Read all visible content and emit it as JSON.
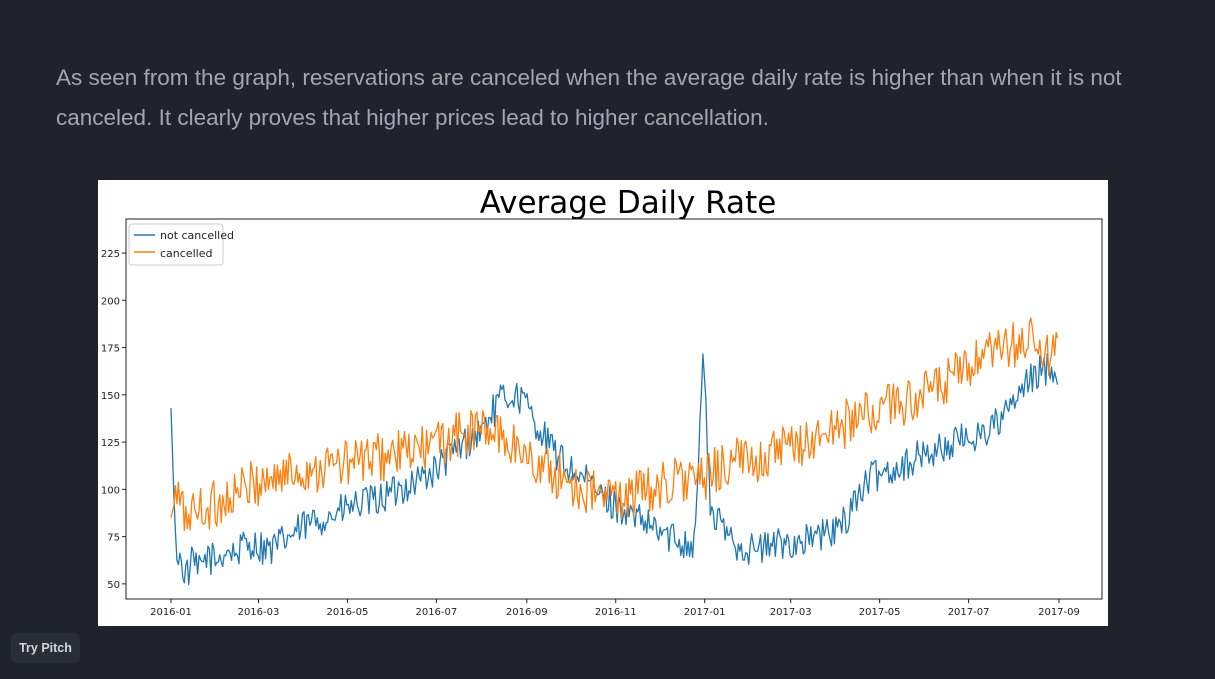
{
  "slide": {
    "paragraph": "As seen from the graph, reservations are canceled when the average daily rate is higher than when it is not canceled. It clearly proves that higher prices lead to higher cancellation."
  },
  "badge": {
    "label": "Try Pitch"
  },
  "chart_data": {
    "type": "line",
    "title": "Average Daily Rate",
    "xlabel": "",
    "ylabel": "",
    "x_range": [
      "2016-01-01",
      "2017-09-01"
    ],
    "ylim": [
      42,
      243
    ],
    "yticks": [
      50,
      75,
      100,
      125,
      150,
      175,
      200,
      225
    ],
    "xticks": [
      "2016-01",
      "2016-03",
      "2016-05",
      "2016-07",
      "2016-09",
      "2016-11",
      "2017-01",
      "2017-03",
      "2017-05",
      "2017-07",
      "2017-09"
    ],
    "grid": false,
    "legend": "top-left",
    "series": [
      {
        "name": "not cancelled",
        "color": "#1f77b4",
        "points": [
          [
            "2016-01-01",
            143
          ],
          [
            "2016-01-04",
            72
          ],
          [
            "2016-01-08",
            60
          ],
          [
            "2016-01-12",
            55
          ],
          [
            "2016-01-16",
            62
          ],
          [
            "2016-01-20",
            56
          ],
          [
            "2016-01-25",
            65
          ],
          [
            "2016-02-01",
            62
          ],
          [
            "2016-02-08",
            68
          ],
          [
            "2016-02-15",
            66
          ],
          [
            "2016-02-22",
            72
          ],
          [
            "2016-03-01",
            70
          ],
          [
            "2016-03-10",
            68
          ],
          [
            "2016-03-20",
            74
          ],
          [
            "2016-04-01",
            80
          ],
          [
            "2016-04-10",
            84
          ],
          [
            "2016-04-20",
            86
          ],
          [
            "2016-05-01",
            90
          ],
          [
            "2016-05-10",
            92
          ],
          [
            "2016-05-20",
            94
          ],
          [
            "2016-06-01",
            98
          ],
          [
            "2016-06-10",
            102
          ],
          [
            "2016-06-20",
            106
          ],
          [
            "2016-07-01",
            110
          ],
          [
            "2016-07-10",
            118
          ],
          [
            "2016-07-20",
            124
          ],
          [
            "2016-07-31",
            130
          ],
          [
            "2016-08-08",
            140
          ],
          [
            "2016-08-15",
            148
          ],
          [
            "2016-08-22",
            150
          ],
          [
            "2016-08-29",
            148
          ],
          [
            "2016-09-05",
            138
          ],
          [
            "2016-09-15",
            125
          ],
          [
            "2016-09-25",
            115
          ],
          [
            "2016-10-05",
            108
          ],
          [
            "2016-10-15",
            102
          ],
          [
            "2016-10-25",
            95
          ],
          [
            "2016-11-05",
            90
          ],
          [
            "2016-11-15",
            84
          ],
          [
            "2016-11-25",
            80
          ],
          [
            "2016-12-05",
            76
          ],
          [
            "2016-12-15",
            73
          ],
          [
            "2016-12-25",
            71
          ],
          [
            "2016-12-31",
            173
          ],
          [
            "2017-01-05",
            88
          ],
          [
            "2017-01-15",
            78
          ],
          [
            "2017-01-25",
            70
          ],
          [
            "2017-02-05",
            68
          ],
          [
            "2017-02-15",
            70
          ],
          [
            "2017-02-25",
            72
          ],
          [
            "2017-03-05",
            72
          ],
          [
            "2017-03-15",
            74
          ],
          [
            "2017-03-25",
            76
          ],
          [
            "2017-04-05",
            80
          ],
          [
            "2017-04-15",
            96
          ],
          [
            "2017-04-25",
            106
          ],
          [
            "2017-05-05",
            110
          ],
          [
            "2017-05-15",
            112
          ],
          [
            "2017-05-25",
            116
          ],
          [
            "2017-06-05",
            120
          ],
          [
            "2017-06-15",
            122
          ],
          [
            "2017-06-25",
            126
          ],
          [
            "2017-07-05",
            128
          ],
          [
            "2017-07-15",
            132
          ],
          [
            "2017-07-25",
            138
          ],
          [
            "2017-08-05",
            150
          ],
          [
            "2017-08-15",
            160
          ],
          [
            "2017-08-25",
            165
          ],
          [
            "2017-08-31",
            162
          ]
        ]
      },
      {
        "name": "cancelled",
        "color": "#ff7f0e",
        "points": [
          [
            "2016-01-01",
            85
          ],
          [
            "2016-01-05",
            98
          ],
          [
            "2016-01-10",
            86
          ],
          [
            "2016-01-15",
            88
          ],
          [
            "2016-01-22",
            90
          ],
          [
            "2016-02-01",
            92
          ],
          [
            "2016-02-10",
            96
          ],
          [
            "2016-02-20",
            100
          ],
          [
            "2016-03-01",
            104
          ],
          [
            "2016-03-10",
            106
          ],
          [
            "2016-03-20",
            108
          ],
          [
            "2016-04-01",
            110
          ],
          [
            "2016-04-15",
            112
          ],
          [
            "2016-05-01",
            114
          ],
          [
            "2016-05-15",
            116
          ],
          [
            "2016-06-01",
            118
          ],
          [
            "2016-06-15",
            120
          ],
          [
            "2016-07-01",
            124
          ],
          [
            "2016-07-15",
            128
          ],
          [
            "2016-07-31",
            132
          ],
          [
            "2016-08-15",
            128
          ],
          [
            "2016-08-25",
            122
          ],
          [
            "2016-09-05",
            115
          ],
          [
            "2016-09-15",
            110
          ],
          [
            "2016-09-25",
            106
          ],
          [
            "2016-10-05",
            102
          ],
          [
            "2016-10-15",
            98
          ],
          [
            "2016-10-25",
            96
          ],
          [
            "2016-11-05",
            96
          ],
          [
            "2016-11-15",
            98
          ],
          [
            "2016-11-25",
            100
          ],
          [
            "2016-12-05",
            103
          ],
          [
            "2016-12-15",
            106
          ],
          [
            "2016-12-31",
            104
          ],
          [
            "2017-01-10",
            112
          ],
          [
            "2017-01-20",
            114
          ],
          [
            "2017-02-01",
            116
          ],
          [
            "2017-02-15",
            118
          ],
          [
            "2017-03-01",
            122
          ],
          [
            "2017-03-15",
            126
          ],
          [
            "2017-04-01",
            132
          ],
          [
            "2017-04-15",
            138
          ],
          [
            "2017-05-01",
            142
          ],
          [
            "2017-05-15",
            146
          ],
          [
            "2017-06-01",
            150
          ],
          [
            "2017-06-15",
            156
          ],
          [
            "2017-07-01",
            164
          ],
          [
            "2017-07-15",
            170
          ],
          [
            "2017-08-01",
            176
          ],
          [
            "2017-08-15",
            180
          ],
          [
            "2017-08-25",
            168
          ],
          [
            "2017-08-31",
            175
          ]
        ]
      }
    ],
    "annotations": []
  }
}
